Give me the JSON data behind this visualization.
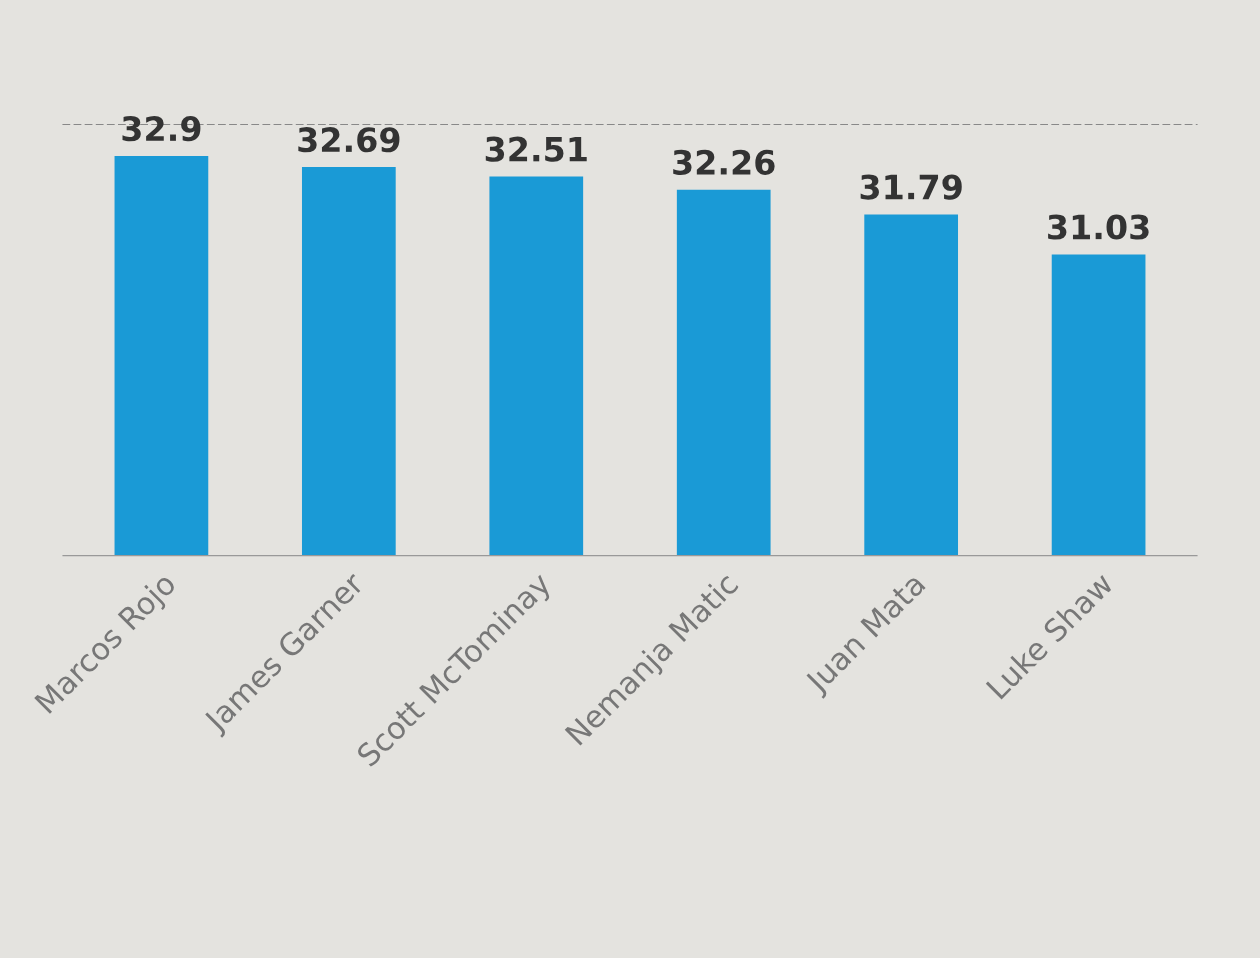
{
  "chart_data": {
    "type": "bar",
    "categories": [
      "Marcos Rojo",
      "James Garner",
      "Scott McTominay",
      "Nemanja Matic",
      "Juan Mata",
      "Luke Shaw"
    ],
    "values": [
      32.9,
      32.69,
      32.51,
      32.26,
      31.79,
      31.03
    ],
    "color": "#1a9ad6",
    "data_labels": true,
    "ylim": [
      25.3,
      33.5
    ],
    "tick_labels": "x",
    "grid": false
  }
}
